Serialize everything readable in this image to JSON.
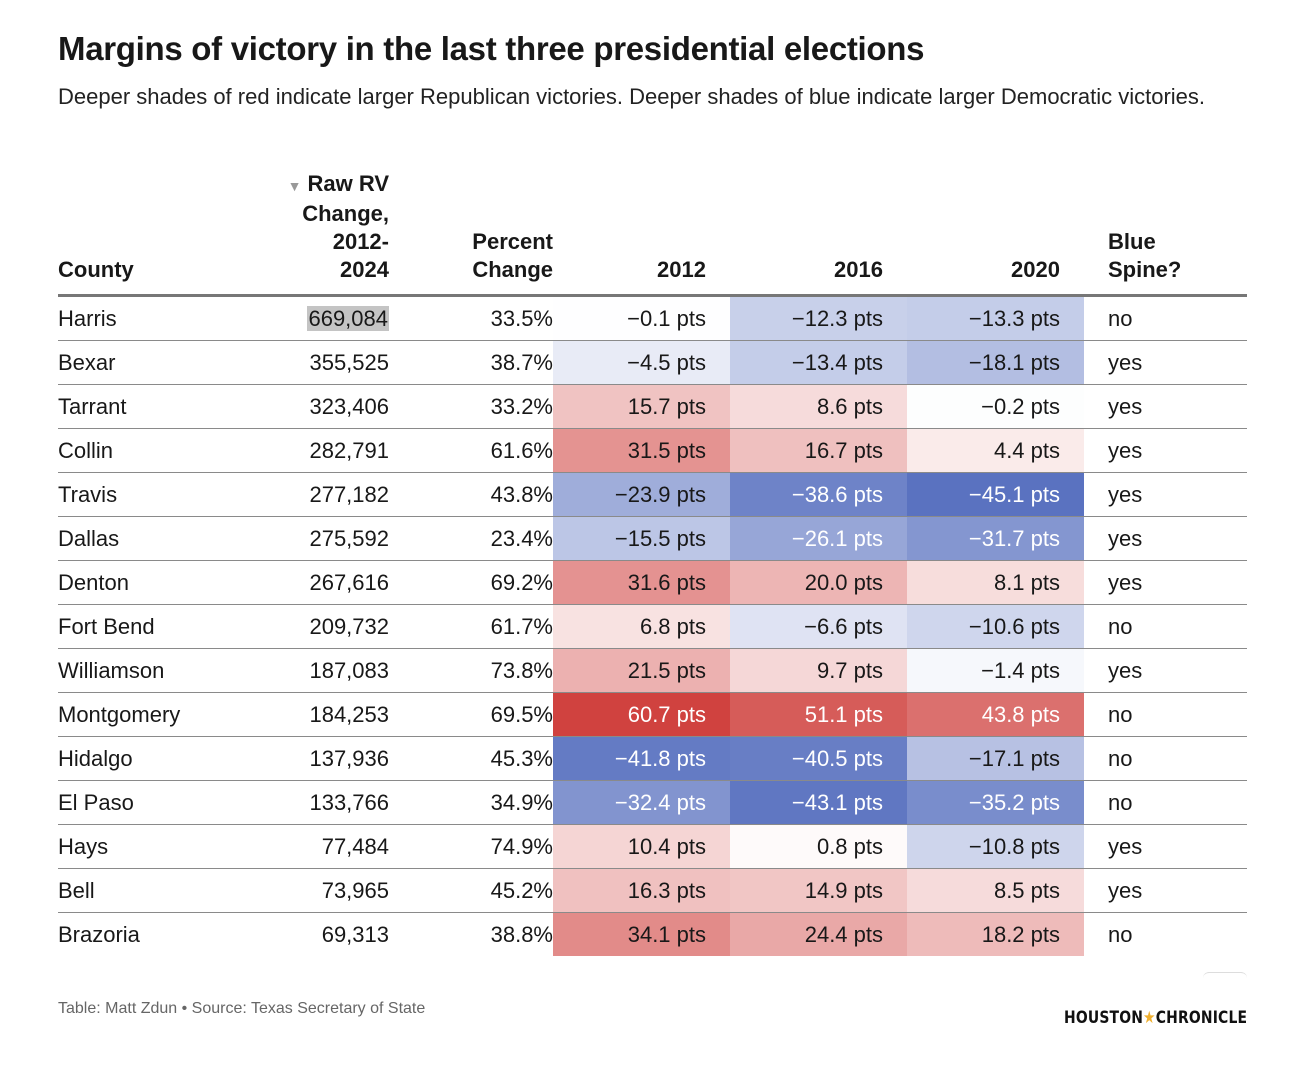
{
  "title": "Margins of victory in the last three presidential elections",
  "subtitle": "Deeper shades of red indicate larger Republican victories. Deeper shades of blue indicate larger Democratic victories.",
  "footer": "Table: Matt Zdun • Source: Texas Secretary of State",
  "logo": "HOUSTON★CHRONICLE",
  "colors": {
    "red": "#d0423f",
    "blue": "#5a72c0",
    "highlight": "#c4c4c4"
  },
  "chart_data": {
    "type": "table",
    "sorted_by": "Raw RV Change, 2012-2024",
    "sort_direction": "descending",
    "columns": [
      "County",
      "Raw RV Change, 2012-2024",
      "Percent Change",
      "2012",
      "2016",
      "2020",
      "Blue Spine?"
    ],
    "headers": {
      "county": "County",
      "raw": [
        "Raw RV",
        "Change,",
        "2012-",
        "2024"
      ],
      "pct": [
        "Percent",
        "Change"
      ],
      "y2012": "2012",
      "y2016": "2016",
      "y2020": "2020",
      "spine": [
        "Blue",
        "Spine?"
      ],
      "sort_icon": "▼"
    },
    "rows": [
      {
        "county": "Harris",
        "raw": "669,084",
        "pct": "33.5%",
        "m2012": "−0.1 pts",
        "m2016": "−12.3 pts",
        "m2020": "−13.3 pts",
        "v": [
          -0.1,
          -12.3,
          -13.3
        ],
        "spine": "no"
      },
      {
        "county": "Bexar",
        "raw": "355,525",
        "pct": "38.7%",
        "m2012": "−4.5 pts",
        "m2016": "−13.4 pts",
        "m2020": "−18.1 pts",
        "v": [
          -4.5,
          -13.4,
          -18.1
        ],
        "spine": "yes"
      },
      {
        "county": "Tarrant",
        "raw": "323,406",
        "pct": "33.2%",
        "m2012": "15.7 pts",
        "m2016": "8.6 pts",
        "m2020": "−0.2 pts",
        "v": [
          15.7,
          8.6,
          -0.2
        ],
        "spine": "yes"
      },
      {
        "county": "Collin",
        "raw": "282,791",
        "pct": "61.6%",
        "m2012": "31.5 pts",
        "m2016": "16.7 pts",
        "m2020": "4.4 pts",
        "v": [
          31.5,
          16.7,
          4.4
        ],
        "spine": "yes"
      },
      {
        "county": "Travis",
        "raw": "277,182",
        "pct": "43.8%",
        "m2012": "−23.9 pts",
        "m2016": "−38.6 pts",
        "m2020": "−45.1 pts",
        "v": [
          -23.9,
          -38.6,
          -45.1
        ],
        "spine": "yes"
      },
      {
        "county": "Dallas",
        "raw": "275,592",
        "pct": "23.4%",
        "m2012": "−15.5 pts",
        "m2016": "−26.1 pts",
        "m2020": "−31.7 pts",
        "v": [
          -15.5,
          -26.1,
          -31.7
        ],
        "spine": "yes"
      },
      {
        "county": "Denton",
        "raw": "267,616",
        "pct": "69.2%",
        "m2012": "31.6 pts",
        "m2016": "20.0 pts",
        "m2020": "8.1 pts",
        "v": [
          31.6,
          20.0,
          8.1
        ],
        "spine": "yes"
      },
      {
        "county": "Fort Bend",
        "raw": "209,732",
        "pct": "61.7%",
        "m2012": "6.8 pts",
        "m2016": "−6.6 pts",
        "m2020": "−10.6 pts",
        "v": [
          6.8,
          -6.6,
          -10.6
        ],
        "spine": "no"
      },
      {
        "county": "Williamson",
        "raw": "187,083",
        "pct": "73.8%",
        "m2012": "21.5 pts",
        "m2016": "9.7 pts",
        "m2020": "−1.4 pts",
        "v": [
          21.5,
          9.7,
          -1.4
        ],
        "spine": "yes"
      },
      {
        "county": "Montgomery",
        "raw": "184,253",
        "pct": "69.5%",
        "m2012": "60.7 pts",
        "m2016": "51.1 pts",
        "m2020": "43.8 pts",
        "v": [
          60.7,
          51.1,
          43.8
        ],
        "spine": "no"
      },
      {
        "county": "Hidalgo",
        "raw": "137,936",
        "pct": "45.3%",
        "m2012": "−41.8 pts",
        "m2016": "−40.5 pts",
        "m2020": "−17.1 pts",
        "v": [
          -41.8,
          -40.5,
          -17.1
        ],
        "spine": "no"
      },
      {
        "county": "El Paso",
        "raw": "133,766",
        "pct": "34.9%",
        "m2012": "−32.4 pts",
        "m2016": "−43.1 pts",
        "m2020": "−35.2 pts",
        "v": [
          -32.4,
          -43.1,
          -35.2
        ],
        "spine": "no"
      },
      {
        "county": "Hays",
        "raw": "77,484",
        "pct": "74.9%",
        "m2012": "10.4 pts",
        "m2016": "0.8 pts",
        "m2020": "−10.8 pts",
        "v": [
          10.4,
          0.8,
          -10.8
        ],
        "spine": "yes"
      },
      {
        "county": "Bell",
        "raw": "73,965",
        "pct": "45.2%",
        "m2012": "16.3 pts",
        "m2016": "14.9 pts",
        "m2020": "8.5 pts",
        "v": [
          16.3,
          14.9,
          8.5
        ],
        "spine": "yes"
      },
      {
        "county": "Brazoria",
        "raw": "69,313",
        "pct": "38.8%",
        "m2012": "34.1 pts",
        "m2016": "24.4 pts",
        "m2020": "18.2 pts",
        "v": [
          34.1,
          24.4,
          18.2
        ],
        "spine": "no"
      }
    ]
  }
}
